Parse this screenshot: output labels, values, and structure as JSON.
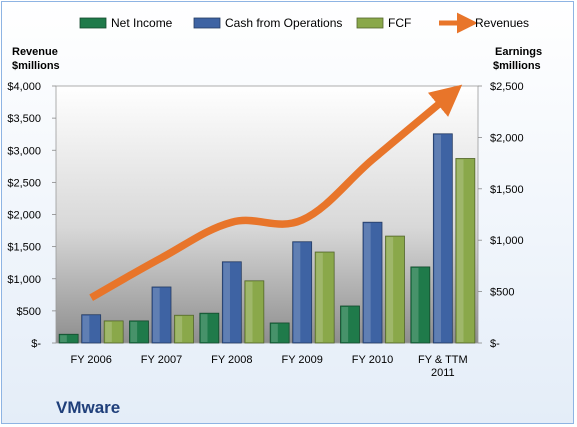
{
  "chart_data": {
    "type": "bar",
    "company": "VMware",
    "categories": [
      "FY 2006",
      "FY 2007",
      "FY 2008",
      "FY 2009",
      "FY 2010",
      "FY & TTM 2011"
    ],
    "series": [
      {
        "name": "Net Income",
        "axis": "right",
        "color": "#1f7a4a",
        "values": [
          85,
          215,
          290,
          195,
          360,
          740
        ]
      },
      {
        "name": "Cash from Operations",
        "axis": "right",
        "color": "#3e63a3",
        "values": [
          275,
          545,
          790,
          985,
          1175,
          2035
        ]
      },
      {
        "name": "FCF",
        "axis": "right",
        "color": "#8aa84a",
        "values": [
          215,
          270,
          605,
          885,
          1040,
          1795
        ]
      },
      {
        "name": "Revenues",
        "axis": "left",
        "type": "line",
        "color": "#e8752a",
        "values": [
          705,
          1325,
          1880,
          1915,
          2855,
          3770
        ]
      }
    ],
    "left_axis": {
      "label_lines": [
        "Revenue",
        "$millions"
      ],
      "ylim": [
        0,
        4000
      ],
      "ticks": [
        "$-",
        "$500",
        "$1,000",
        "$1,500",
        "$2,000",
        "$2,500",
        "$3,000",
        "$3,500",
        "$4,000"
      ]
    },
    "right_axis": {
      "label_lines": [
        "Earnings",
        "$millions"
      ],
      "ylim": [
        0,
        2500
      ],
      "ticks": [
        "$-",
        "$500",
        "$1,000",
        "$1,500",
        "$2,000",
        "$2,500"
      ]
    },
    "legend_position": "top",
    "grid": false
  }
}
